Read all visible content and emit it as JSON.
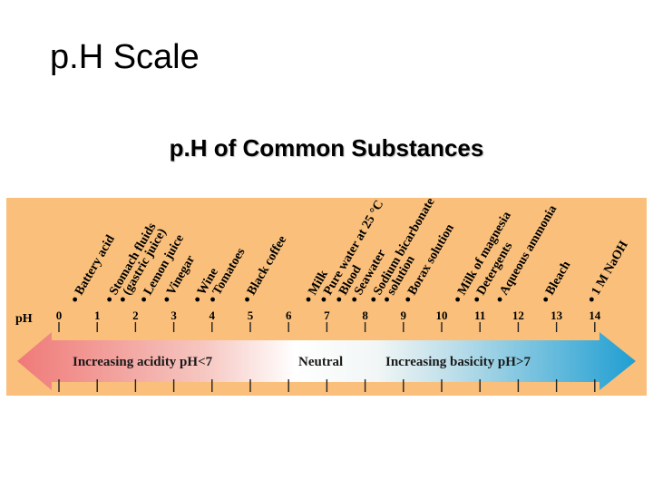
{
  "title": "p.H Scale",
  "subtitle": "p.H of Common Substances",
  "axis_label": "pH",
  "ticks": [
    "0",
    "1",
    "2",
    "3",
    "4",
    "5",
    "6",
    "7",
    "8",
    "9",
    "10",
    "11",
    "12",
    "13",
    "14"
  ],
  "substances": [
    {
      "name": "Battery acid",
      "ph": 0.5
    },
    {
      "name": "Stomach fluids",
      "ph": 1.4
    },
    {
      "name": "(gastric juice)",
      "ph": 1.75
    },
    {
      "name": "Lemon juice",
      "ph": 2.3
    },
    {
      "name": "Vinegar",
      "ph": 2.9
    },
    {
      "name": "Wine",
      "ph": 3.7
    },
    {
      "name": "Tomatoes",
      "ph": 4.1
    },
    {
      "name": "Black coffee",
      "ph": 5.0
    },
    {
      "name": "Milk",
      "ph": 6.6
    },
    {
      "name": "Pure water at 25 °C",
      "ph": 7.0
    },
    {
      "name": "Blood",
      "ph": 7.4
    },
    {
      "name": "Seawater",
      "ph": 7.8
    },
    {
      "name": "Sodium bicarbonate",
      "ph": 8.3
    },
    {
      "name": "solution",
      "ph": 8.65
    },
    {
      "name": "Borax solution",
      "ph": 9.2
    },
    {
      "name": "Milk of magnesia",
      "ph": 10.5
    },
    {
      "name": "Detergents",
      "ph": 11.0
    },
    {
      "name": "Aqueous ammonia",
      "ph": 11.6
    },
    {
      "name": "Bleach",
      "ph": 12.8
    },
    {
      "name": "1 M NaOH",
      "ph": 14.0
    }
  ],
  "bands": {
    "acidic": "Increasing acidity pH<7",
    "neutral": "Neutral",
    "basic": "Increasing basicity pH>7"
  },
  "colors": {
    "panel": "#f9bf7b",
    "arrow_acid": "#ef7a78",
    "arrow_neutral": "#ffffff",
    "arrow_base": "#1f9ed2"
  }
}
